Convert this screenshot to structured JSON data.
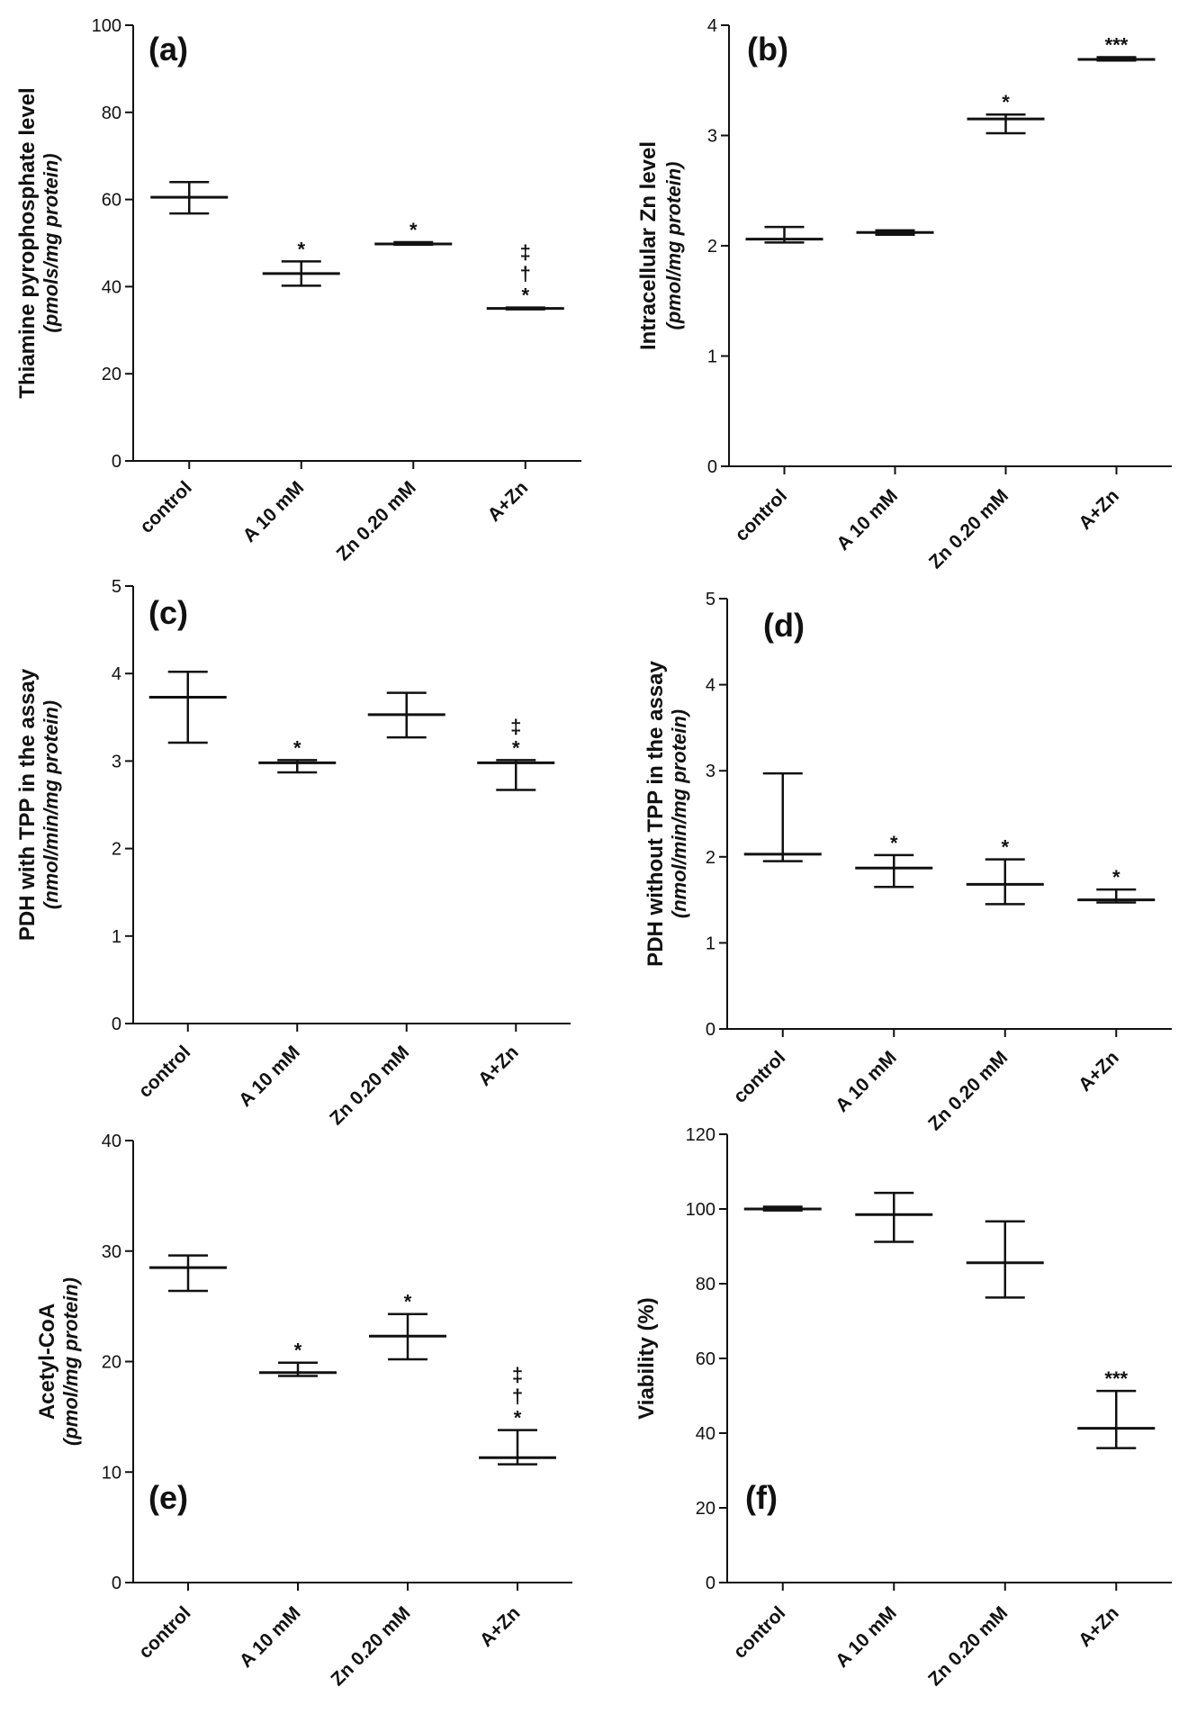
{
  "chart_data": [
    {
      "type": "floating-bar",
      "panel_label": "(a)",
      "categories": [
        "control",
        "A 10 mM",
        "Zn 0.20 mM",
        "A+Zn"
      ],
      "ylabel": "Thiamine pyrophosphate level",
      "ylabel_units": "(pmols/mg protein)",
      "ylim": [
        0,
        100
      ],
      "yticks": [
        0,
        20,
        40,
        60,
        80,
        100
      ],
      "series": [
        {
          "name": "mean with min-max",
          "values": [
            {
              "mean": 60.5,
              "low": 56.8,
              "high": 64.0,
              "marks": []
            },
            {
              "mean": 43.0,
              "low": 40.2,
              "high": 45.8,
              "marks": [
                "*"
              ]
            },
            {
              "mean": 49.8,
              "low": 49.6,
              "high": 50.2,
              "marks": [
                "*"
              ]
            },
            {
              "mean": 35.0,
              "low": 34.8,
              "high": 35.2,
              "marks": [
                "*",
                "†",
                "‡"
              ]
            }
          ]
        }
      ]
    },
    {
      "type": "floating-bar",
      "panel_label": "(b)",
      "categories": [
        "control",
        "A 10 mM",
        "Zn 0.20 mM",
        "A+Zn"
      ],
      "ylabel": "Intracellular Zn level",
      "ylabel_units": "(pmol/mg protein)",
      "ylim": [
        0,
        4
      ],
      "yticks": [
        0,
        1,
        2,
        3,
        4
      ],
      "series": [
        {
          "name": "mean with min-max",
          "values": [
            {
              "mean": 2.06,
              "low": 2.03,
              "high": 2.17,
              "marks": []
            },
            {
              "mean": 2.12,
              "low": 2.1,
              "high": 2.14,
              "marks": []
            },
            {
              "mean": 3.15,
              "low": 3.02,
              "high": 3.19,
              "marks": [
                "*"
              ]
            },
            {
              "mean": 3.69,
              "low": 3.68,
              "high": 3.71,
              "marks": [
                "***"
              ]
            }
          ]
        }
      ]
    },
    {
      "type": "floating-bar",
      "panel_label": "(c)",
      "categories": [
        "control",
        "A 10 mM",
        "Zn 0.20 mM",
        "A+Zn"
      ],
      "ylabel": "PDH with TPP in the assay",
      "ylabel_units": "(nmol/min/mg protein)",
      "ylim": [
        0,
        5
      ],
      "yticks": [
        0,
        1,
        2,
        3,
        4,
        5
      ],
      "series": [
        {
          "name": "mean with min-max",
          "values": [
            {
              "mean": 3.73,
              "low": 3.21,
              "high": 4.02,
              "marks": []
            },
            {
              "mean": 2.98,
              "low": 2.87,
              "high": 3.01,
              "marks": [
                "*"
              ]
            },
            {
              "mean": 3.53,
              "low": 3.27,
              "high": 3.78,
              "marks": []
            },
            {
              "mean": 2.98,
              "low": 2.67,
              "high": 3.01,
              "marks": [
                "*",
                "‡"
              ]
            }
          ]
        }
      ]
    },
    {
      "type": "floating-bar",
      "panel_label": "(d)",
      "categories": [
        "control",
        "A 10 mM",
        "Zn 0.20 mM",
        "A+Zn"
      ],
      "ylabel": "PDH without TPP in the assay",
      "ylabel_units": "(nmol/min/mg protein)",
      "ylim": [
        0,
        5
      ],
      "yticks": [
        0,
        1,
        2,
        3,
        4,
        5
      ],
      "series": [
        {
          "name": "mean with min-max",
          "values": [
            {
              "mean": 2.03,
              "low": 1.95,
              "high": 2.97,
              "marks": []
            },
            {
              "mean": 1.87,
              "low": 1.65,
              "high": 2.02,
              "marks": [
                "*"
              ]
            },
            {
              "mean": 1.68,
              "low": 1.45,
              "high": 1.97,
              "marks": [
                "*"
              ]
            },
            {
              "mean": 1.5,
              "low": 1.47,
              "high": 1.62,
              "marks": [
                "*"
              ]
            }
          ]
        }
      ]
    },
    {
      "type": "floating-bar",
      "panel_label": "(e)",
      "categories": [
        "control",
        "A 10 mM",
        "Zn 0.20 mM",
        "A+Zn"
      ],
      "ylabel": "Acetyl-CoA",
      "ylabel_units": "(pmol/mg protein)",
      "ylim": [
        0,
        40
      ],
      "yticks": [
        0,
        10,
        20,
        30,
        40
      ],
      "series": [
        {
          "name": "mean with min-max",
          "values": [
            {
              "mean": 28.5,
              "low": 26.4,
              "high": 29.6,
              "marks": []
            },
            {
              "mean": 19.0,
              "low": 18.7,
              "high": 19.9,
              "marks": [
                "*"
              ]
            },
            {
              "mean": 22.3,
              "low": 20.2,
              "high": 24.3,
              "marks": [
                "*"
              ]
            },
            {
              "mean": 11.3,
              "low": 10.7,
              "high": 13.8,
              "marks": [
                "*",
                "†",
                "‡"
              ]
            }
          ]
        }
      ]
    },
    {
      "type": "floating-bar",
      "panel_label": "(f)",
      "categories": [
        "control",
        "A 10 mM",
        "Zn 0.20 mM",
        "A+Zn"
      ],
      "ylabel": "Viability (%)",
      "ylabel_units": "",
      "ylim": [
        0,
        120
      ],
      "yticks": [
        0,
        20,
        40,
        60,
        80,
        100,
        120
      ],
      "series": [
        {
          "name": "mean with min-max",
          "values": [
            {
              "mean": 100.0,
              "low": 99.6,
              "high": 100.6,
              "marks": []
            },
            {
              "mean": 98.5,
              "low": 91.2,
              "high": 104.3,
              "marks": []
            },
            {
              "mean": 85.6,
              "low": 76.3,
              "high": 96.7,
              "marks": []
            },
            {
              "mean": 41.3,
              "low": 36.0,
              "high": 51.3,
              "marks": [
                "***"
              ]
            }
          ]
        }
      ]
    }
  ]
}
